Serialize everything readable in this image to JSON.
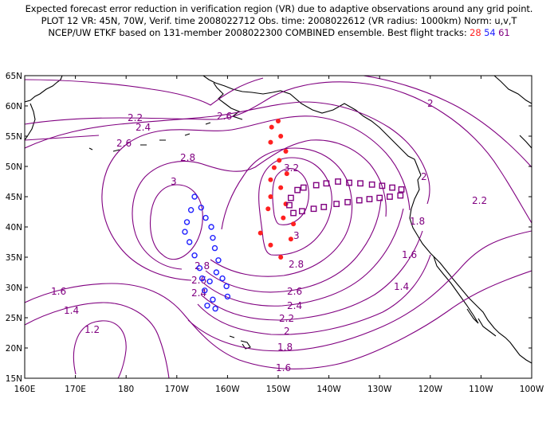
{
  "title": {
    "line1": "Expected forecast error reduction in verification region (VR) due to adaptive observations around any grid point.",
    "line2": "PLOT 12 VR: 45N, 70W, Verif. time 2008022712 Obs. time: 2008022612 (VR radius: 1000km) Norm: u,v,T",
    "line3_prefix": "NCEP/UW ETKF based on 131-member 2008022300 COMBINED ensemble.  Best flight tracks:",
    "track_ids": [
      "28",
      "54",
      "61"
    ]
  },
  "colors": {
    "contour": "#800080",
    "track_28": "#ff2020",
    "track_54": "#2020ff",
    "track_61": "#800080",
    "coast": "#000000"
  },
  "axes": {
    "lat_labels": [
      "65N",
      "60N",
      "55N",
      "50N",
      "45N",
      "40N",
      "35N",
      "30N",
      "25N",
      "20N",
      "15N"
    ],
    "lon_labels": [
      "160E",
      "170E",
      "180",
      "170W",
      "160W",
      "150W",
      "140W",
      "130W",
      "120W",
      "110W",
      "100W"
    ]
  },
  "contour_labels": [
    "2",
    "2.2",
    "2.4",
    "2.6",
    "2.6",
    "2.8",
    "3",
    "3.2",
    "2",
    "2.2",
    "1.8",
    "1.6",
    "1.4",
    "1.6",
    "1.4",
    "1.2",
    "2.8",
    "2.6",
    "2.4",
    "3",
    "2.8",
    "2.6",
    "2.4",
    "2.2",
    "2",
    "1.8",
    "1.6"
  ],
  "tracks": {
    "track_28": {
      "id": "28",
      "marker": "dot",
      "points": [
        [
          -150,
          57.5
        ],
        [
          -151.3,
          56.5
        ],
        [
          -149.5,
          55
        ],
        [
          -151.5,
          54
        ],
        [
          -148.5,
          52.5
        ],
        [
          -149.8,
          51
        ],
        [
          -150.8,
          49.8
        ],
        [
          -148.3,
          48.8
        ],
        [
          -151.5,
          47.8
        ],
        [
          -149.5,
          46.5
        ],
        [
          -151.5,
          45
        ],
        [
          -148.5,
          43.8
        ],
        [
          -152,
          43
        ],
        [
          -149,
          41.5
        ],
        [
          -147,
          40.5
        ],
        [
          -153.5,
          39
        ],
        [
          -147.5,
          38
        ],
        [
          -151.5,
          37
        ],
        [
          -149.5,
          35
        ]
      ]
    },
    "track_54": {
      "id": "54",
      "marker": "circle",
      "points": [
        [
          -166.5,
          45
        ],
        [
          -165.2,
          43.2
        ],
        [
          -167.2,
          42.8
        ],
        [
          -164.3,
          41.5
        ],
        [
          -168,
          40.8
        ],
        [
          -163.2,
          40
        ],
        [
          -168.4,
          39.2
        ],
        [
          -162.9,
          38.2
        ],
        [
          -167.5,
          37.5
        ],
        [
          -162.5,
          36.5
        ],
        [
          -166.5,
          35.3
        ],
        [
          -161.8,
          34.5
        ],
        [
          -165.5,
          33.2
        ],
        [
          -162.2,
          32.5
        ],
        [
          -165,
          31.5
        ],
        [
          -161,
          31.5
        ],
        [
          -163.5,
          31
        ],
        [
          -160.2,
          30.2
        ],
        [
          -164.5,
          29.5
        ],
        [
          -160,
          28.5
        ],
        [
          -162.9,
          28
        ],
        [
          -164,
          27
        ],
        [
          -162.4,
          26.5
        ]
      ]
    },
    "track_61": {
      "id": "61",
      "marker": "square",
      "points": [
        [
          -147.5,
          44.8
        ],
        [
          -146.2,
          46.1
        ],
        [
          -145,
          46.5
        ],
        [
          -142.5,
          46.9
        ],
        [
          -140.5,
          47.2
        ],
        [
          -138.2,
          47.5
        ],
        [
          -136,
          47.3
        ],
        [
          -133.8,
          47.2
        ],
        [
          -131.5,
          47
        ],
        [
          -129.5,
          46.8
        ],
        [
          -127.5,
          46.5
        ],
        [
          -125.7,
          46.2
        ],
        [
          -125.9,
          45.2
        ],
        [
          -128,
          45
        ],
        [
          -130,
          44.8
        ],
        [
          -132,
          44.6
        ],
        [
          -134,
          44.4
        ],
        [
          -136.3,
          44.1
        ],
        [
          -138.5,
          43.8
        ],
        [
          -141,
          43.3
        ],
        [
          -143,
          43
        ],
        [
          -145.3,
          42.6
        ],
        [
          -147,
          42.3
        ],
        [
          -147.8,
          43.6
        ]
      ]
    }
  }
}
